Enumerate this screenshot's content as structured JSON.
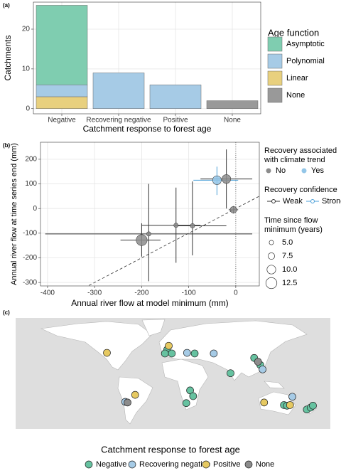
{
  "chart_data": [
    {
      "type": "bar",
      "panel_label": "(a)",
      "x_label": "Catchment response to forest age",
      "y_label": "Catchments",
      "categories": [
        "Negative",
        "Recovering negative",
        "Positive",
        "None"
      ],
      "legend_title": "Age function",
      "series": [
        {
          "name": "Asymptotic",
          "color": "#7fcdb0",
          "values": [
            20,
            null,
            null,
            null
          ]
        },
        {
          "name": "Polynomial",
          "color": "#a6cbe6",
          "values": [
            3,
            9,
            6,
            null
          ]
        },
        {
          "name": "Linear",
          "color": "#e8d07e",
          "values": [
            3,
            null,
            null,
            null
          ]
        },
        {
          "name": "None",
          "color": "#999999",
          "values": [
            null,
            null,
            null,
            2
          ]
        }
      ],
      "ylim": [
        -1.3,
        26.8
      ],
      "yticks": [
        0,
        10,
        20
      ],
      "grid": true
    },
    {
      "type": "scatter",
      "panel_label": "(b)",
      "x_label": "Annual river flow at model minimum (mm)",
      "y_label": "Annual river flow at time series end (mm)",
      "xlim": [
        -415,
        50
      ],
      "xticks": [
        -400,
        -300,
        -200,
        -100,
        0
      ],
      "ylim": [
        -314,
        269
      ],
      "yticks": [
        -300,
        -200,
        -100,
        0,
        100,
        200
      ],
      "grid": true,
      "vline": 0,
      "abline": {
        "intercept": 0,
        "slope": 1
      },
      "x": [
        -200,
        -185,
        -127,
        -92,
        -20,
        -40,
        -5
      ],
      "y": [
        -128,
        -103,
        -68,
        -70,
        120,
        115,
        -5
      ],
      "size": [
        12.5,
        5,
        5,
        5,
        10,
        10,
        7.5
      ],
      "x_low": [
        -245,
        -405,
        -200,
        -130,
        -75,
        -90,
        -15
      ],
      "x_high": [
        -160,
        35,
        -75,
        -20,
        35,
        5,
        5
      ],
      "y_low": [
        -195,
        -295,
        -220,
        -190,
        0,
        55,
        -20
      ],
      "y_high": [
        -60,
        100,
        85,
        110,
        240,
        170,
        10
      ],
      "trend": [
        "No",
        "No",
        "No",
        "No",
        "No",
        "Yes",
        "No"
      ],
      "confidence": [
        "Weak",
        "Weak",
        "Weak",
        "Weak",
        "Weak",
        "Strong",
        "Weak"
      ],
      "trend_legend": {
        "title": [
          "Recovery associated",
          "with climate trend"
        ],
        "items": [
          {
            "name": "No",
            "color": "#8c8c8c"
          },
          {
            "name": "Yes",
            "color": "#93c6e8"
          }
        ]
      },
      "confidence_legend": {
        "title": "Recovery confidence",
        "items": [
          {
            "name": "Weak",
            "color": "#333333"
          },
          {
            "name": "Strong",
            "color": "#4a9fd8"
          }
        ]
      },
      "size_legend": {
        "title": [
          "Time since flow",
          "minimum (years)"
        ],
        "ticks": [
          {
            "value": 5,
            "label": "5.0"
          },
          7.5,
          {
            "value": 10,
            "label": "10.0"
          },
          12.5
        ]
      }
    },
    {
      "type": "map",
      "panel_label": "(c)",
      "legend_title": "Catchment response to forest age",
      "series": [
        {
          "name": "Negative",
          "color": "#66c2a0",
          "lon": [
            -40,
            -34,
            -43,
            -4,
            43,
            74,
            82,
            -10,
            -6,
            -15,
            113,
            117,
            143,
            148,
            151
          ],
          "lat": [
            48,
            42,
            42,
            42,
            11,
            35,
            24,
            -16,
            -25,
            -36,
            -39,
            -40,
            -46,
            -43,
            -40
          ]
        },
        {
          "name": "Recovering negative",
          "color": "#a6cbe6",
          "lon": [
            -14,
            21,
            85,
            124,
            -95
          ],
          "lat": [
            43,
            42,
            17,
            -26,
            -34
          ]
        },
        {
          "name": "Positive",
          "color": "#e6c961",
          "lon": [
            -119,
            -38,
            -82,
            87,
            121
          ],
          "lat": [
            43,
            54,
            -23,
            -35,
            -39
          ]
        },
        {
          "name": "None",
          "color": "#8c8c8c",
          "lon": [
            79,
            -92
          ],
          "lat": [
            29,
            -35
          ]
        }
      ]
    }
  ]
}
